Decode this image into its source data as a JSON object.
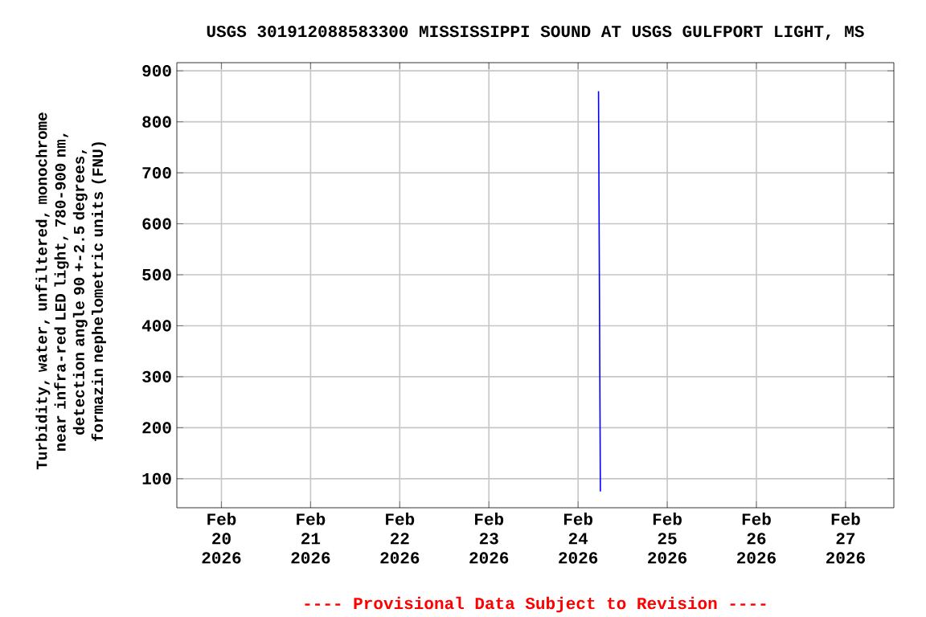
{
  "chart_data": {
    "type": "line",
    "title": "USGS 301912088583300 MISSISSIPPI SOUND AT USGS GULFPORT LIGHT, MS",
    "ylabel": "Turbidity, water, unfiltered, monochrome near infra-red LED light, 780-900 nm, detection angle 90 +-2.5 degrees, formazin nephelometric units (FNU)",
    "annotations": [
      "---- Provisional Data Subject to Revision ----"
    ],
    "x": [
      "2026-02-24T05:30",
      "2026-02-24T05:45",
      "2026-02-24T06:00"
    ],
    "series": [
      {
        "color": "#0000ff",
        "values": [
          860,
          470,
          75
        ]
      }
    ],
    "xlim": [
      "2026-02-19T12:00",
      "2026-02-27T13:00"
    ],
    "xticks": [
      {
        "value": "2026-02-20",
        "label": "Feb 20 2026"
      },
      {
        "value": "2026-02-21",
        "label": "Feb 21 2026"
      },
      {
        "value": "2026-02-22",
        "label": "Feb 22 2026"
      },
      {
        "value": "2026-02-23",
        "label": "Feb 23 2026"
      },
      {
        "value": "2026-02-24",
        "label": "Feb 24 2026"
      },
      {
        "value": "2026-02-25",
        "label": "Feb 25 2026"
      },
      {
        "value": "2026-02-26",
        "label": "Feb 26 2026"
      },
      {
        "value": "2026-02-27",
        "label": "Feb 27 2026"
      }
    ],
    "ylim": [
      43,
      916
    ],
    "yticks": [
      100,
      200,
      300,
      400,
      500,
      600,
      700,
      800,
      900
    ],
    "grid": true,
    "marker": "none",
    "line_style": "solid"
  }
}
